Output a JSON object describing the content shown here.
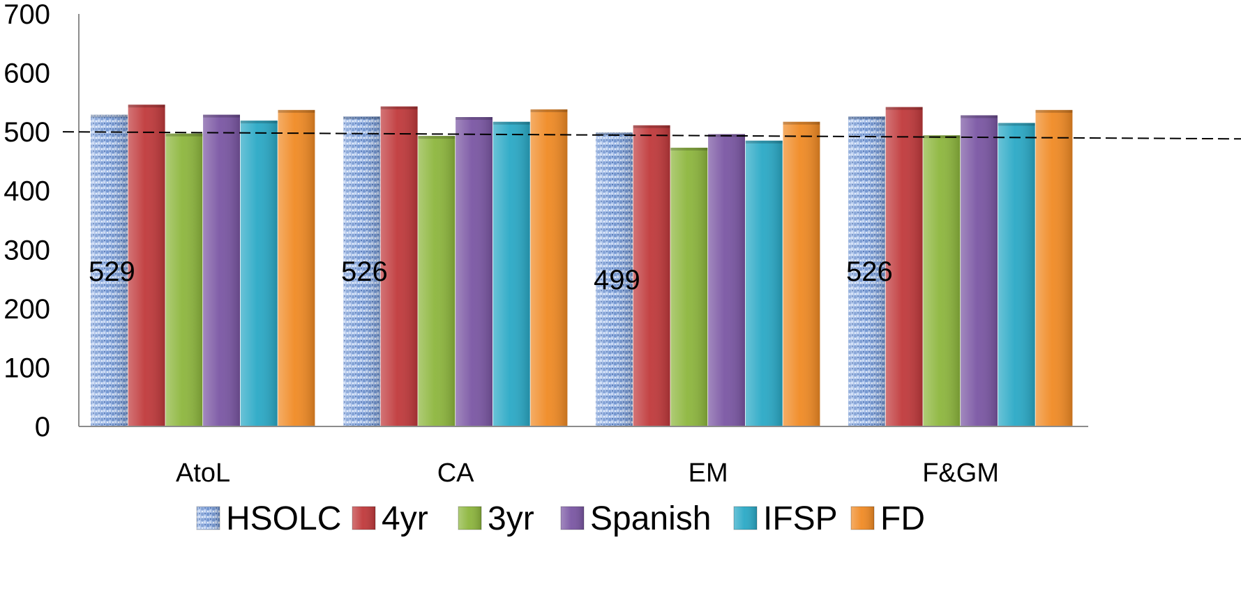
{
  "chart_data": {
    "type": "bar",
    "categories": [
      "AtoL",
      "CA",
      "EM",
      "F&GM"
    ],
    "series": [
      {
        "name": "HSOLC",
        "color": "#9db8e6",
        "values": [
          529,
          526,
          499,
          526
        ],
        "pattern": "texture"
      },
      {
        "name": "4yr",
        "color": "#c0393b",
        "values": [
          546,
          543,
          511,
          542
        ]
      },
      {
        "name": "3yr",
        "color": "#8db63d",
        "values": [
          497,
          493,
          473,
          494
        ]
      },
      {
        "name": "Spanish",
        "color": "#7a56a3",
        "values": [
          529,
          525,
          496,
          528
        ]
      },
      {
        "name": "IFSP",
        "color": "#2aa9c6",
        "values": [
          519,
          517,
          485,
          515
        ]
      },
      {
        "name": "FD",
        "color": "#f08a24",
        "values": [
          537,
          538,
          517,
          537
        ]
      }
    ],
    "data_labels": [
      {
        "series": "HSOLC",
        "category": "AtoL",
        "text": "529"
      },
      {
        "series": "HSOLC",
        "category": "CA",
        "text": "526"
      },
      {
        "series": "HSOLC",
        "category": "EM",
        "text": "499"
      },
      {
        "series": "HSOLC",
        "category": "F&GM",
        "text": "526"
      }
    ],
    "reference_line": {
      "start": 500,
      "end": 488,
      "style": "dashed"
    },
    "yticks": [
      "0",
      "100",
      "200",
      "300",
      "400",
      "500",
      "600",
      "700"
    ],
    "ylim": [
      0,
      700
    ],
    "title": "",
    "xlabel": "",
    "ylabel": "",
    "grid": false,
    "legend_position": "bottom"
  }
}
